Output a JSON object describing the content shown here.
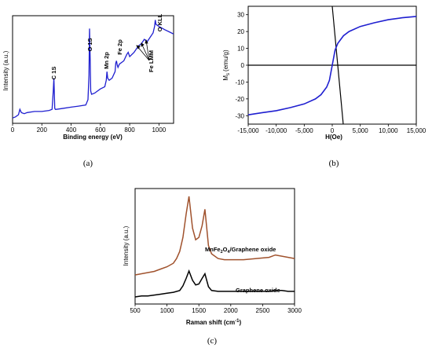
{
  "chart_data": [
    {
      "type": "line",
      "panel_label": "(a)",
      "xlabel": "Binding energy (eV)",
      "ylabel": "Intensity (a.u.)",
      "xlim": [
        0,
        1100
      ],
      "xticks": [
        "0",
        "200",
        "400",
        "600",
        "800",
        "1000"
      ],
      "ylim": [
        0,
        100
      ],
      "grid": false,
      "series": [
        {
          "color": "#1f1fd0",
          "x": [
            0,
            20,
            40,
            50,
            60,
            80,
            100,
            150,
            200,
            250,
            270,
            278,
            282,
            285,
            288,
            292,
            300,
            350,
            400,
            450,
            500,
            515,
            522,
            526,
            530,
            534,
            540,
            560,
            600,
            630,
            640,
            645,
            650,
            660,
            680,
            700,
            705,
            710,
            715,
            720,
            730,
            760,
            780,
            790,
            800,
            830,
            850,
            860,
            880,
            900,
            920,
            940,
            960,
            970,
            975,
            980,
            1000,
            1040,
            1070,
            1100
          ],
          "y": [
            5,
            6,
            8,
            13,
            10,
            9,
            10,
            11,
            11,
            12,
            13,
            30,
            42,
            30,
            14,
            13,
            13,
            14,
            15,
            16,
            17,
            22,
            45,
            88,
            60,
            30,
            27,
            28,
            32,
            34,
            40,
            48,
            42,
            40,
            42,
            48,
            56,
            58,
            54,
            52,
            55,
            58,
            64,
            66,
            62,
            66,
            70,
            72,
            74,
            78,
            76,
            80,
            84,
            90,
            96,
            92,
            90,
            87,
            85,
            83
          ]
        }
      ],
      "annotations": [
        "C 1S",
        "O 1S",
        "Mn 2p",
        "Fe 2p",
        "Fe LMM",
        "O KLL"
      ]
    },
    {
      "type": "line",
      "panel_label": "(b)",
      "xlabel": "H(Oe)",
      "ylabel": "M",
      "ylabel_sub": "s",
      "ylabel_units": "(emu/g)",
      "xlim": [
        -15000,
        15000
      ],
      "xticks": [
        "-15,000",
        "-10,000",
        "-5,000",
        "0",
        "5,000",
        "10,000",
        "15,000"
      ],
      "ylim": [
        -35,
        35
      ],
      "yticks": [
        "-30",
        "-20",
        "-10",
        "0",
        "10",
        "20",
        "30"
      ],
      "grid": false,
      "series": [
        {
          "color": "#1f1fd0",
          "x": [
            -15000,
            -12500,
            -10000,
            -7500,
            -5000,
            -3000,
            -2000,
            -1000,
            -500,
            0,
            500,
            1000,
            2000,
            3000,
            5000,
            7500,
            10000,
            12500,
            15000
          ],
          "y": [
            -29.5,
            -28.2,
            -27,
            -25.2,
            -23,
            -20,
            -17.5,
            -13,
            -9,
            0,
            9,
            13,
            17.5,
            20,
            23,
            25.2,
            27,
            28.2,
            29
          ]
        }
      ]
    },
    {
      "type": "line",
      "panel_label": "(c)",
      "xlabel": "Raman shift (cm",
      "xlabel_sup": "-1",
      "xlabel_end": ")",
      "ylabel": "Intensity (a.u.)",
      "xlim": [
        500,
        3000
      ],
      "xticks": [
        "500",
        "1000",
        "1500",
        "2000",
        "2500",
        "3000"
      ],
      "ylim": [
        0,
        100
      ],
      "grid": false,
      "series": [
        {
          "name_parts": [
            "MnFe",
            "2",
            "O",
            "4",
            "/Graphene oxide"
          ],
          "color": "#a0522d",
          "x": [
            500,
            600,
            700,
            800,
            900,
            1000,
            1100,
            1150,
            1200,
            1250,
            1300,
            1345,
            1400,
            1450,
            1500,
            1550,
            1595,
            1650,
            1700,
            1800,
            1900,
            2000,
            2200,
            2400,
            2600,
            2700,
            2800,
            2900,
            3000
          ],
          "y": [
            20,
            21,
            22,
            23,
            25,
            27,
            30,
            34,
            40,
            52,
            72,
            87,
            60,
            50,
            52,
            62,
            76,
            45,
            38,
            34,
            33,
            33,
            33,
            34,
            35,
            37,
            36,
            35,
            34
          ]
        },
        {
          "name": "Graphene oxide",
          "color": "#000000",
          "x": [
            500,
            600,
            700,
            800,
            900,
            1000,
            1100,
            1200,
            1250,
            1300,
            1345,
            1400,
            1450,
            1500,
            1550,
            1595,
            1650,
            1700,
            1800,
            1900,
            2000,
            2200,
            2400,
            2600,
            2700,
            2800,
            2900,
            3000
          ],
          "y": [
            2,
            3,
            3,
            4,
            5,
            6,
            7,
            9,
            14,
            22,
            30,
            20,
            15,
            16,
            22,
            27,
            13,
            9,
            8,
            8,
            8,
            8,
            8,
            8,
            9,
            9,
            8,
            8
          ]
        }
      ]
    }
  ]
}
